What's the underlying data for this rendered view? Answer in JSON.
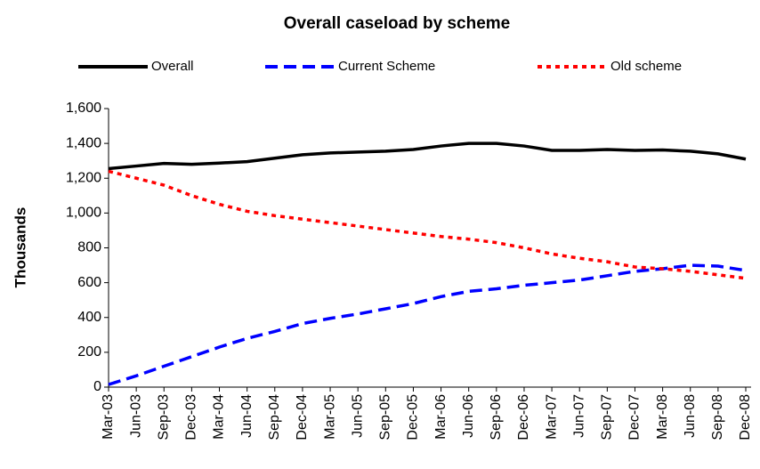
{
  "chart_data": {
    "type": "line",
    "title": "Overall caseload by scheme",
    "y_label": "Thousands",
    "categories": [
      "Mar-03",
      "Jun-03",
      "Sep-03",
      "Dec-03",
      "Mar-04",
      "Jun-04",
      "Sep-04",
      "Dec-04",
      "Mar-05",
      "Jun-05",
      "Sep-05",
      "Dec-05",
      "Mar-06",
      "Jun-06",
      "Sep-06",
      "Dec-06",
      "Mar-07",
      "Jun-07",
      "Sep-07",
      "Dec-07",
      "Mar-08",
      "Jun-08",
      "Sep-08",
      "Dec-08"
    ],
    "series": [
      {
        "name": "Overall",
        "color": "#000000",
        "dash": "solid",
        "values": [
          1255,
          1270,
          1285,
          1280,
          1287,
          1295,
          1315,
          1335,
          1345,
          1350,
          1355,
          1365,
          1385,
          1400,
          1400,
          1385,
          1360,
          1360,
          1365,
          1360,
          1362,
          1355,
          1340,
          1310
        ]
      },
      {
        "name": "Current Scheme",
        "color": "#0000ff",
        "dash": "dashed",
        "values": [
          15,
          65,
          120,
          175,
          230,
          280,
          320,
          365,
          395,
          420,
          450,
          480,
          520,
          550,
          565,
          585,
          600,
          615,
          640,
          665,
          680,
          700,
          695,
          670
        ]
      },
      {
        "name": "Old scheme",
        "color": "#ff0000",
        "dash": "dotted",
        "values": [
          1240,
          1200,
          1160,
          1100,
          1050,
          1010,
          985,
          965,
          945,
          925,
          905,
          885,
          865,
          850,
          830,
          800,
          765,
          740,
          720,
          690,
          680,
          665,
          645,
          625
        ]
      }
    ],
    "ylim": [
      0,
      1600
    ],
    "yticks": [
      0,
      200,
      400,
      600,
      800,
      {
        "value": 1000,
        "label": "1,000"
      },
      {
        "value": 1200,
        "label": "1,200"
      },
      {
        "value": 1400,
        "label": "1,400"
      },
      {
        "value": 1600,
        "label": "1,600"
      }
    ],
    "grid": false,
    "legend": "top"
  }
}
